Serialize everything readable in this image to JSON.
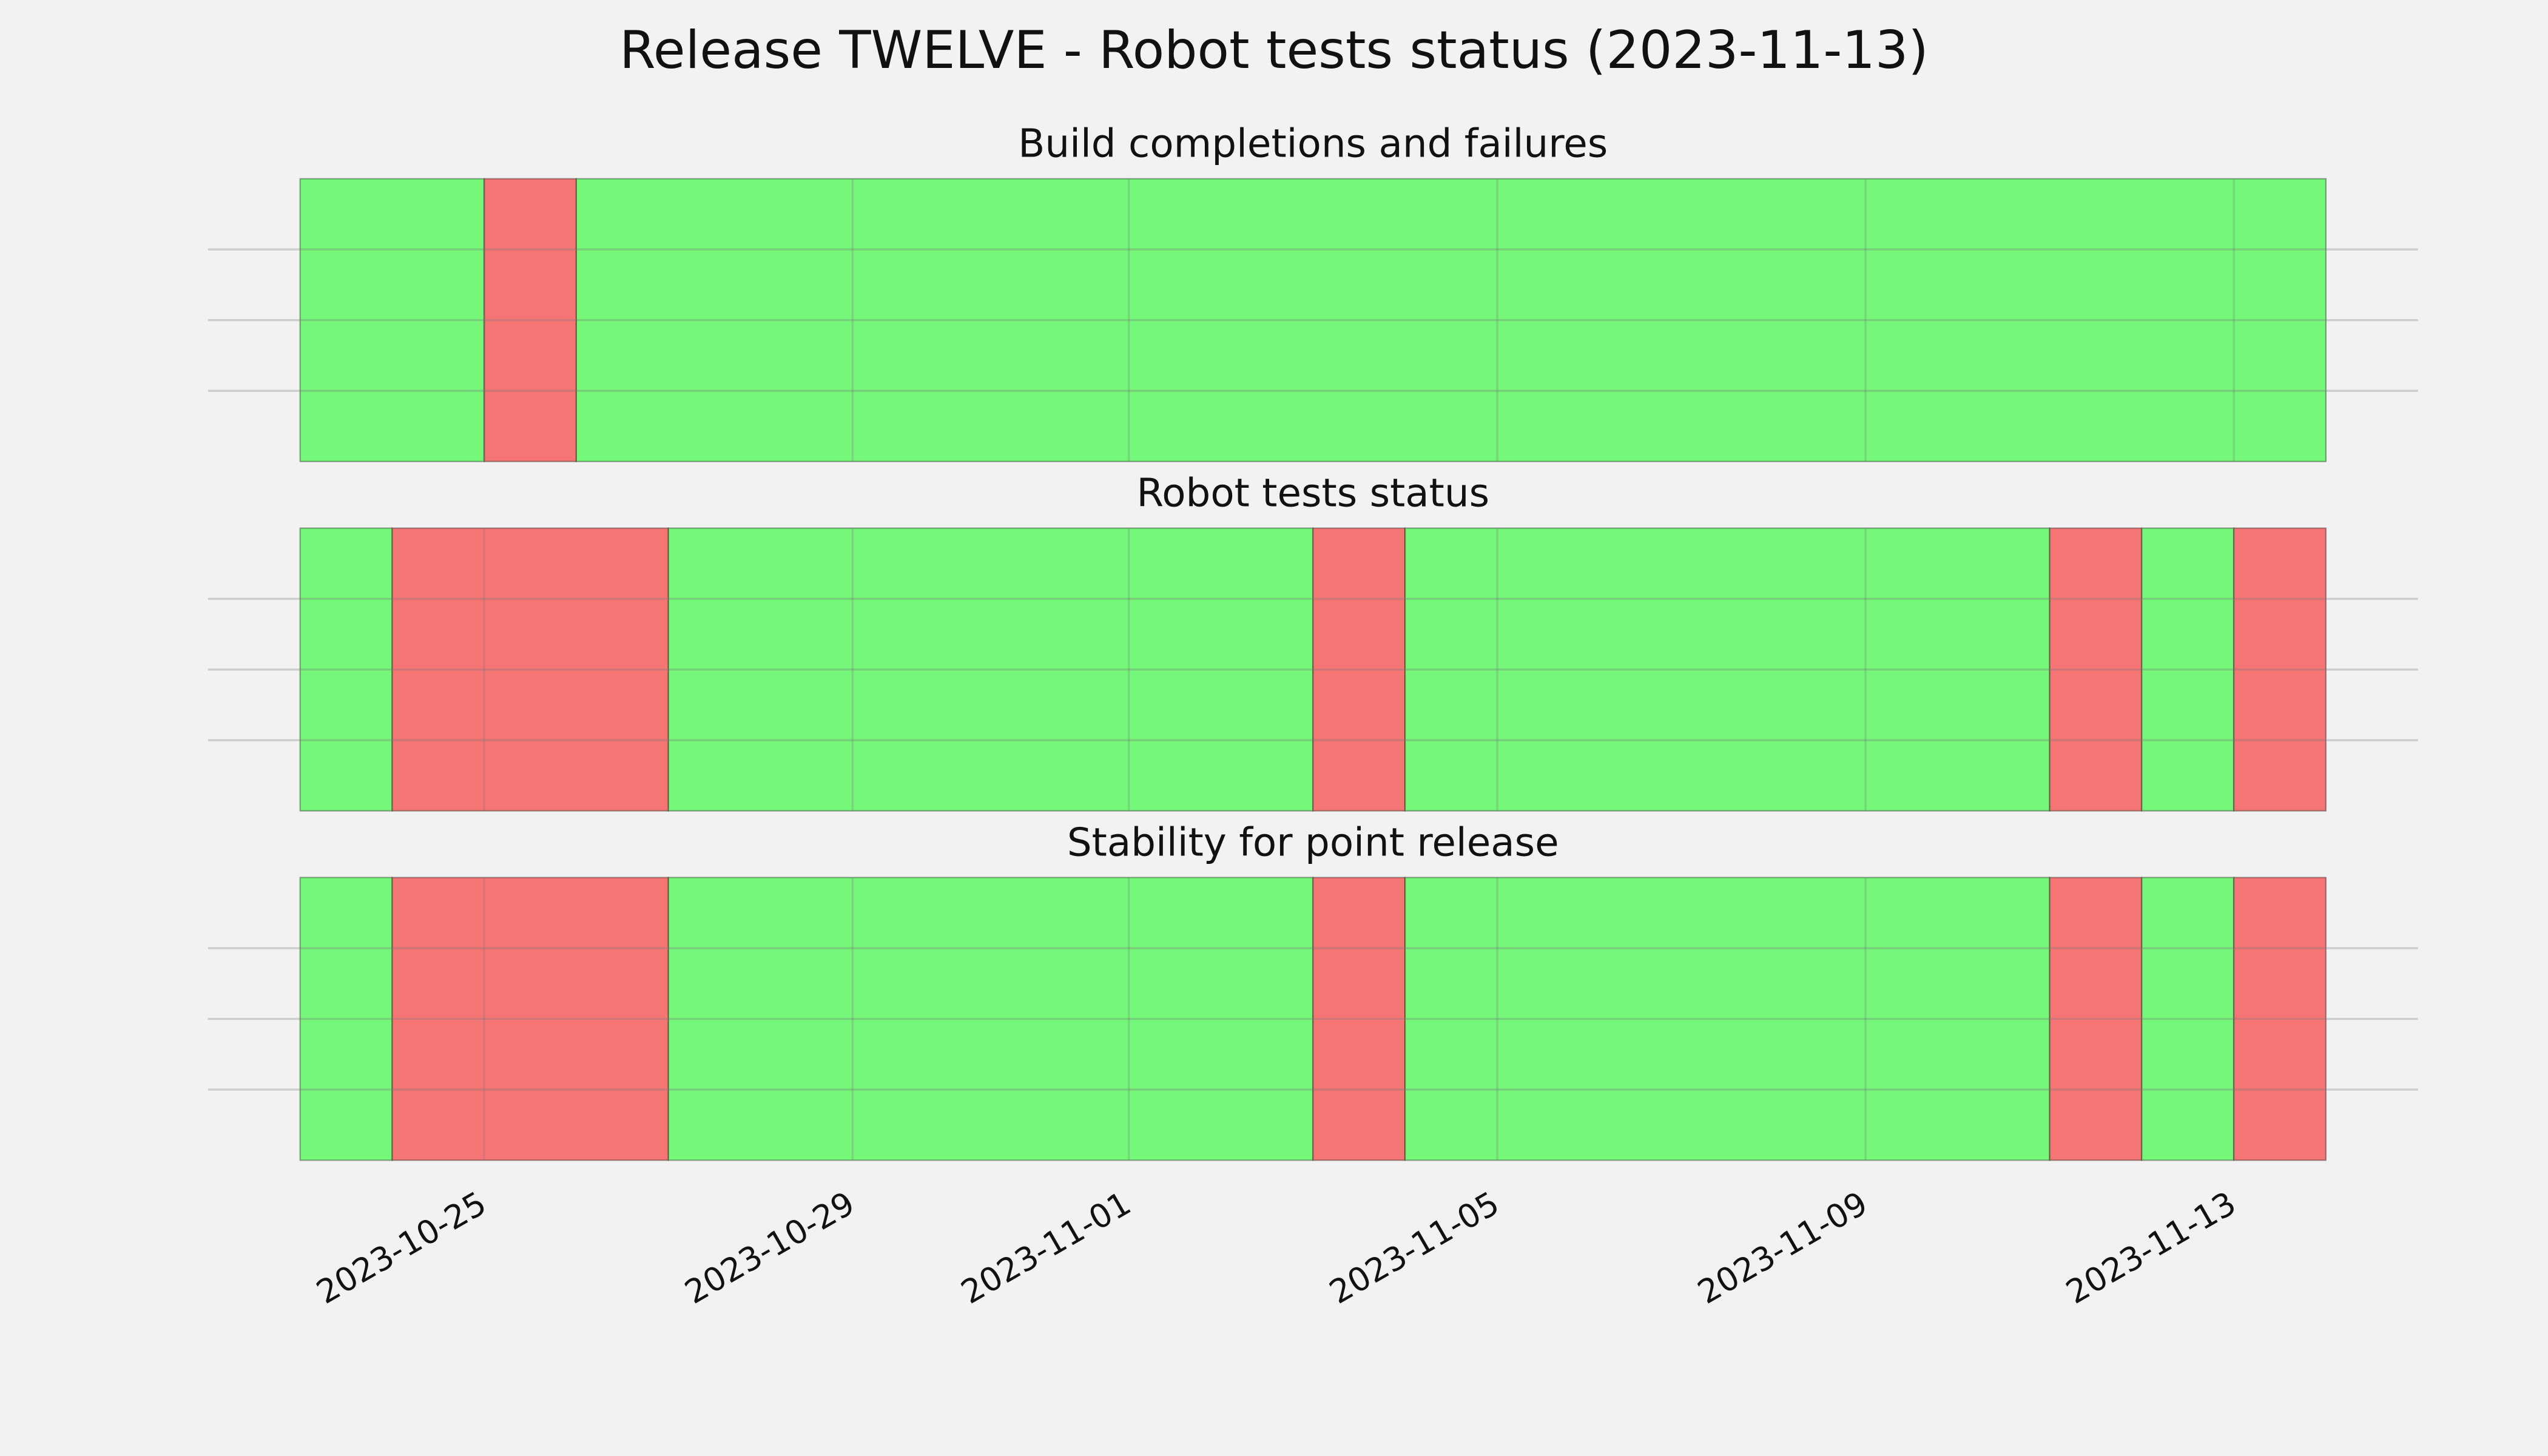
{
  "title": "Release TWELVE - Robot tests status (2023-11-13)",
  "chart_data": [
    {
      "type": "timeline",
      "title": "Build completions and failures",
      "starts": [
        "2023-10-23",
        "2023-10-25",
        "2023-10-26"
      ],
      "ends": [
        "2023-10-25",
        "2023-10-26",
        "2023-11-14"
      ],
      "colors": [
        "#75f77a",
        "#f57575",
        "#75f77a"
      ],
      "xlim": [
        "2023-10-22",
        "2023-11-15"
      ],
      "xticks": [
        "2023-10-25",
        "2023-10-29",
        "2023-11-01",
        "2023-11-05",
        "2023-11-09",
        "2023-11-13"
      ],
      "ylim": [
        0,
        1
      ],
      "yticks": [
        0.25,
        0.5,
        0.75
      ],
      "grid": true
    },
    {
      "type": "timeline",
      "title": "Robot tests status",
      "starts": [
        "2023-10-23",
        "2023-10-24",
        "2023-10-27",
        "2023-11-03",
        "2023-11-04",
        "2023-11-11",
        "2023-11-12",
        "2023-11-13"
      ],
      "ends": [
        "2023-10-24",
        "2023-10-27",
        "2023-11-03",
        "2023-11-04",
        "2023-11-11",
        "2023-11-12",
        "2023-11-13",
        "2023-11-14"
      ],
      "colors": [
        "#75f77a",
        "#f57575",
        "#75f77a",
        "#f57575",
        "#75f77a",
        "#f57575",
        "#75f77a",
        "#f57575"
      ],
      "xlim": [
        "2023-10-22",
        "2023-11-15"
      ],
      "xticks": [
        "2023-10-25",
        "2023-10-29",
        "2023-11-01",
        "2023-11-05",
        "2023-11-09",
        "2023-11-13"
      ],
      "ylim": [
        0,
        1
      ],
      "yticks": [
        0.25,
        0.5,
        0.75
      ],
      "grid": true
    },
    {
      "type": "timeline",
      "title": "Stability for point release",
      "starts": [
        "2023-10-23",
        "2023-10-24",
        "2023-10-27",
        "2023-11-03",
        "2023-11-04",
        "2023-11-11",
        "2023-11-12",
        "2023-11-13"
      ],
      "ends": [
        "2023-10-24",
        "2023-10-27",
        "2023-11-03",
        "2023-11-04",
        "2023-11-11",
        "2023-11-12",
        "2023-11-13",
        "2023-11-14"
      ],
      "colors": [
        "#75f77a",
        "#f57575",
        "#75f77a",
        "#f57575",
        "#75f77a",
        "#f57575",
        "#75f77a",
        "#f57575"
      ],
      "xlim": [
        "2023-10-22",
        "2023-11-15"
      ],
      "xticks": [
        "2023-10-25",
        "2023-10-29",
        "2023-11-01",
        "2023-11-05",
        "2023-11-09",
        "2023-11-13"
      ],
      "ylim": [
        0,
        1
      ],
      "yticks": [
        0.25,
        0.5,
        0.75
      ],
      "grid": true,
      "show_xtick_labels": true
    }
  ]
}
